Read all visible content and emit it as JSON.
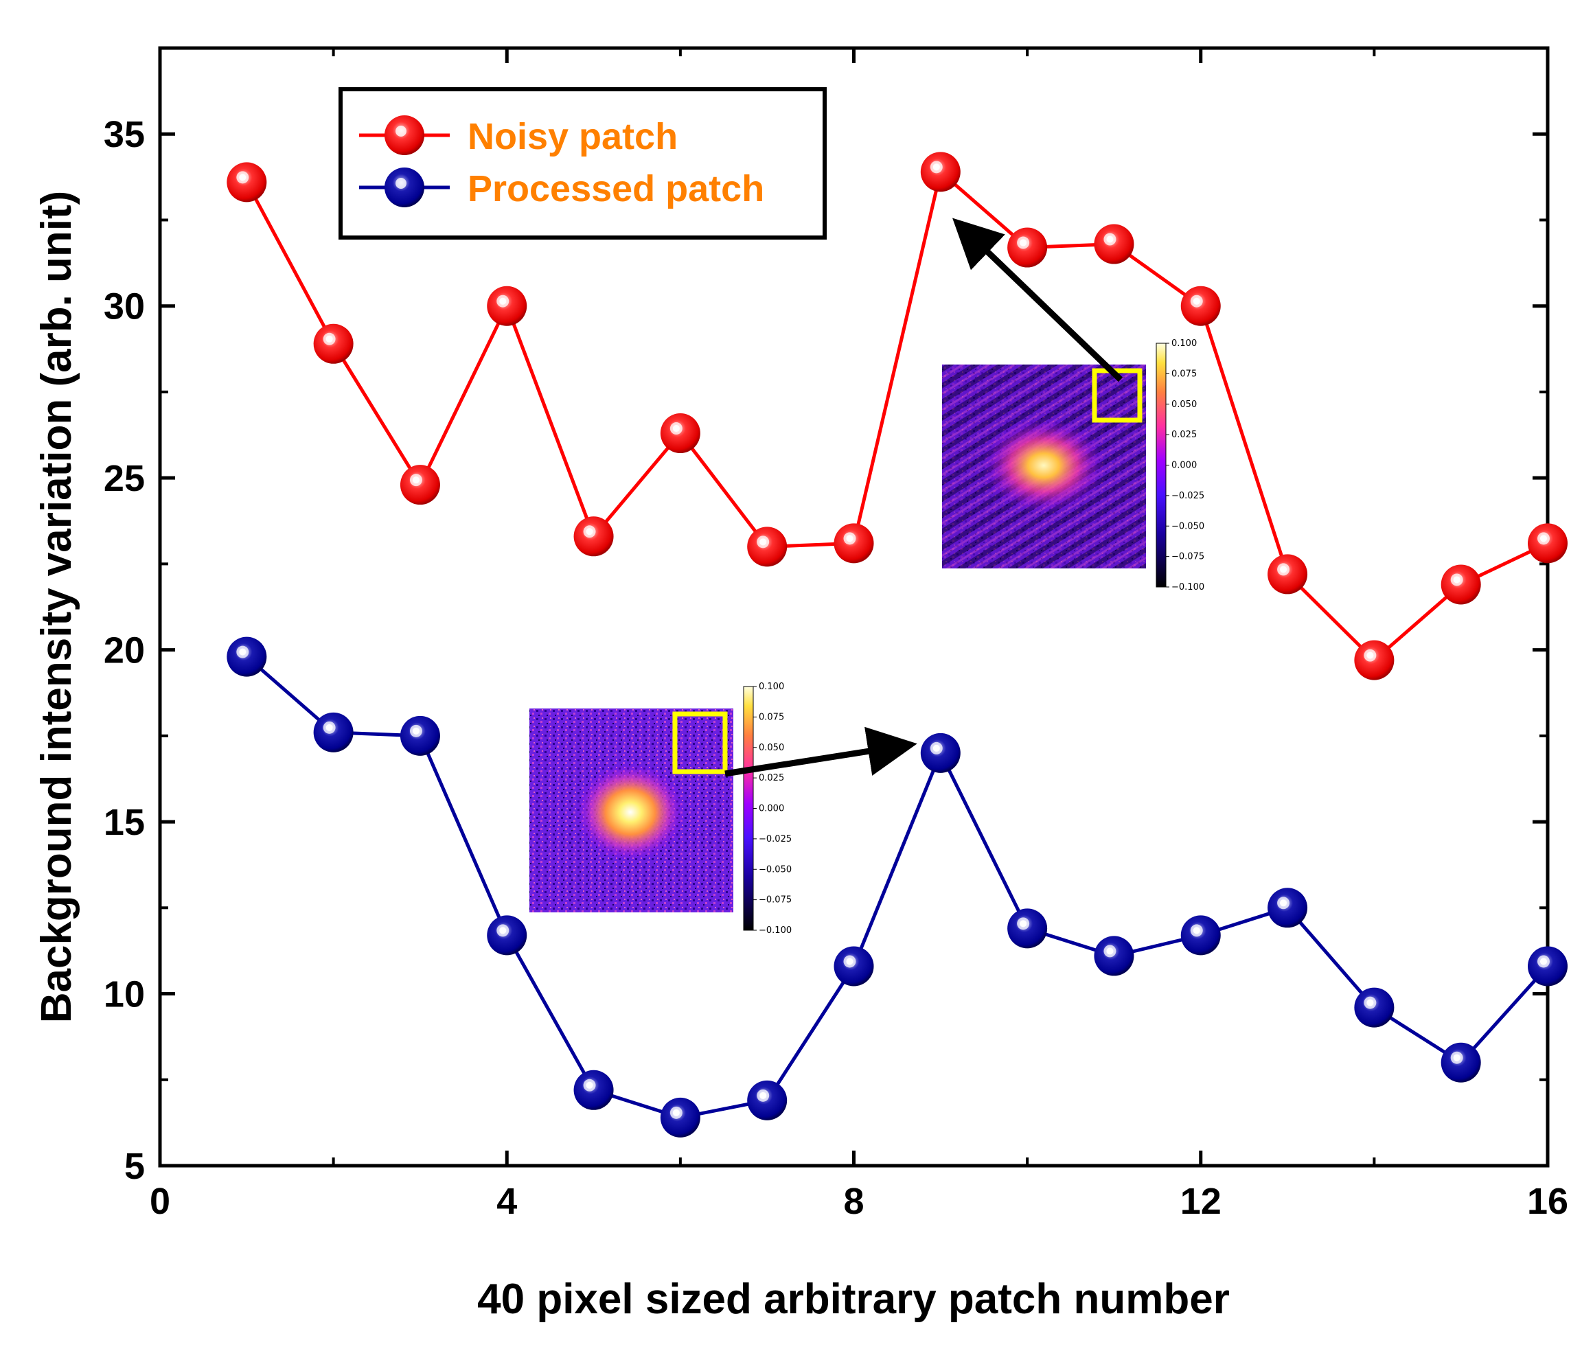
{
  "chart_data": {
    "type": "line",
    "xlabel": "40 pixel sized arbitrary patch number",
    "ylabel": "Background intensity variation (arb. unit)",
    "xlim": [
      0,
      16
    ],
    "ylim": [
      5,
      37.5
    ],
    "xticks": [
      0,
      4,
      8,
      12,
      16
    ],
    "xtick_labels": [
      "0",
      "4",
      "8",
      "12",
      "16"
    ],
    "yticks": [
      5,
      10,
      15,
      20,
      25,
      30,
      35
    ],
    "ytick_labels": [
      "5",
      "10",
      "15",
      "20",
      "25",
      "30",
      "35"
    ],
    "grid": false,
    "legend_position": "top-left",
    "series": [
      {
        "name": "Noisy patch",
        "color": "#ff0000",
        "x": [
          1,
          2,
          3,
          4,
          5,
          6,
          7,
          8,
          9,
          10,
          11,
          12,
          13,
          14,
          15,
          16
        ],
        "y": [
          33.6,
          28.9,
          24.8,
          30.0,
          23.3,
          26.3,
          23.0,
          23.1,
          33.9,
          31.7,
          31.8,
          30.0,
          22.2,
          19.7,
          21.9,
          23.1
        ]
      },
      {
        "name": "Processed patch",
        "color": "#000099",
        "x": [
          1,
          2,
          3,
          4,
          5,
          6,
          7,
          8,
          9,
          10,
          11,
          12,
          13,
          14,
          15,
          16
        ],
        "y": [
          19.8,
          17.6,
          17.5,
          11.7,
          7.2,
          6.4,
          6.9,
          10.8,
          17.0,
          11.9,
          11.1,
          11.7,
          12.5,
          9.6,
          8.0,
          10.8
        ]
      }
    ],
    "legend_text_color": "#ff8000",
    "insets": [
      {
        "name": "noisy-inset",
        "points_to": {
          "series": "Noisy patch",
          "x": 9
        },
        "colorbar_ticks": [
          "0.100",
          "0.075",
          "0.050",
          "0.025",
          "0.000",
          "−0.025",
          "−0.050",
          "−0.075",
          "−0.100"
        ],
        "highlight_color": "#ffff00"
      },
      {
        "name": "processed-inset",
        "points_to": {
          "series": "Processed patch",
          "x": 9
        },
        "colorbar_ticks": [
          "0.100",
          "0.075",
          "0.050",
          "0.025",
          "0.000",
          "−0.025",
          "−0.050",
          "−0.075",
          "−0.100"
        ],
        "highlight_color": "#ffff00"
      }
    ]
  }
}
